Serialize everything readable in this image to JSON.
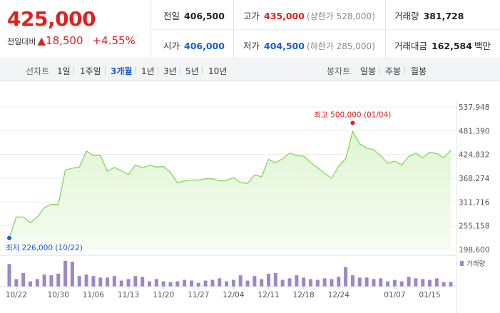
{
  "price": {
    "current": "425,000",
    "change_label": "전일대비",
    "change_arrow": "▲",
    "change_amount": "18,500",
    "change_pct": "+4.55%"
  },
  "info": {
    "prev_close": {
      "label": "전일",
      "value": "406,500"
    },
    "high": {
      "label": "고가",
      "value": "435,000",
      "sub": "(상한가 528,000)"
    },
    "volume": {
      "label": "거래량",
      "value": "381,728"
    },
    "open": {
      "label": "시가",
      "value": "406,000"
    },
    "low": {
      "label": "저가",
      "value": "404,500",
      "sub": "(하한가 285,000)"
    },
    "amount": {
      "label": "거래대금",
      "value": "162,584",
      "unit": "백만"
    }
  },
  "tabs": {
    "line_label": "선차트",
    "line": [
      "1일",
      "1주일",
      "3개월",
      "1년",
      "3년",
      "5년",
      "10년"
    ],
    "candle_label": "봉차트",
    "candle": [
      "일봉",
      "주봉",
      "월봉"
    ]
  },
  "colors": {
    "up": "#e41e1e",
    "down": "#1a5ccf",
    "line": "#7ed957",
    "volume": "#9b87c9"
  },
  "chart_data": {
    "type": "area",
    "y_ticks": [
      "537,948",
      "481,390",
      "424,832",
      "368,274",
      "311,716",
      "255,158",
      "198,600"
    ],
    "ylim": [
      198600,
      537948
    ],
    "x_labels": [
      "10/22",
      "10/30",
      "11/06",
      "11/13",
      "11/20",
      "11/27",
      "12/04",
      "12/11",
      "12/18",
      "12/24",
      "01/07",
      "01/15"
    ],
    "high_annotation": "최고 500,000 (01/04)",
    "low_annotation": "최저 226,000 (10/22)",
    "volume_label": "거래량",
    "values": [
      226000,
      276000,
      276000,
      262000,
      276000,
      298000,
      306000,
      306000,
      388000,
      392000,
      395000,
      433000,
      422000,
      423000,
      385000,
      394000,
      386000,
      377000,
      400000,
      393000,
      399000,
      395000,
      396000,
      382000,
      357000,
      362000,
      364000,
      364000,
      367000,
      367000,
      362000,
      363000,
      370000,
      358000,
      356000,
      376000,
      372000,
      413000,
      405000,
      415000,
      428000,
      422000,
      421000,
      406000,
      393000,
      380000,
      368000,
      397000,
      415000,
      480000,
      450000,
      440000,
      436000,
      422000,
      404000,
      409000,
      400000,
      420000,
      428000,
      417000,
      430000,
      427000,
      417000,
      435000
    ],
    "volume": [
      30,
      10,
      18,
      7,
      10,
      16,
      15,
      17,
      34,
      33,
      14,
      16,
      14,
      12,
      12,
      14,
      8,
      10,
      14,
      13,
      7,
      10,
      7,
      6,
      7,
      9,
      8,
      5,
      8,
      9,
      11,
      7,
      9,
      15,
      8,
      14,
      10,
      17,
      18,
      9,
      11,
      15,
      12,
      10,
      9,
      11,
      10,
      13,
      26,
      15,
      12,
      12,
      10,
      11,
      7,
      9,
      7,
      13,
      11,
      10,
      9,
      11,
      6,
      6
    ]
  }
}
